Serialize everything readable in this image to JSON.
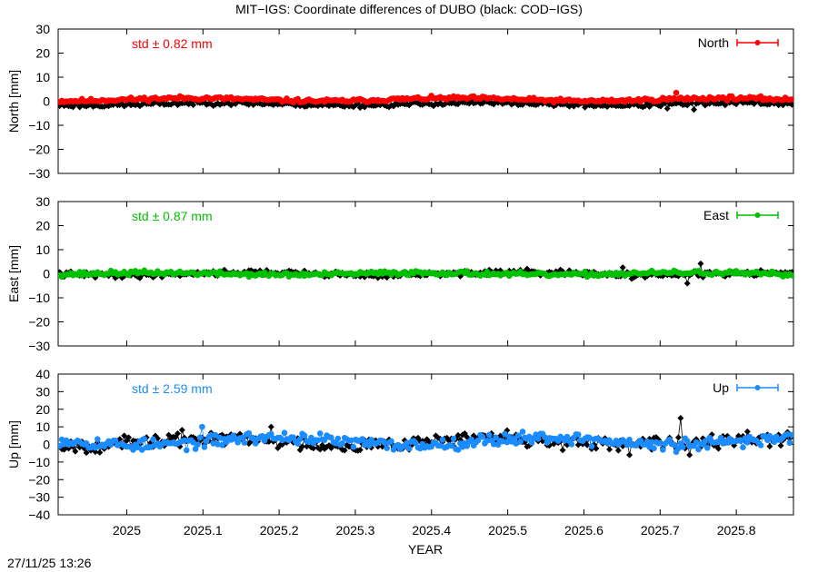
{
  "title": "MIT−IGS: Coordinate differences of DUBO (black: COD−IGS)",
  "timestamp": "27/11/25 13:26",
  "chart_data": {
    "type": "scatter",
    "xlabel": "YEAR",
    "xlim": [
      2024.91,
      2025.875
    ],
    "xticks": [
      "2025",
      "2025.1",
      "2025.2",
      "2025.3",
      "2025.4",
      "2025.5",
      "2025.6",
      "2025.7",
      "2025.8"
    ],
    "grid": false,
    "panels": [
      {
        "ylabel": "North [mm]",
        "ylim": [
          -30,
          30
        ],
        "yticks": [
          "30",
          "20",
          "10",
          "0",
          "−10",
          "−20",
          "−30"
        ],
        "std_label": "std ± 0.82 mm",
        "legend": "North",
        "legend_position": "top-right",
        "color": "#ff0000",
        "series": [
          {
            "name": "North",
            "color": "#ff0000",
            "base": 0.7,
            "amp": 0.6,
            "noise": 0.6,
            "seed": 11,
            "x": [
              2025.72
            ],
            "values": [
              3.5
            ]
          },
          {
            "color": "#000000",
            "base": -1.2,
            "amp": 0.5,
            "noise": 0.7,
            "seed": 23,
            "x": [
              2025.745,
              2025.71
            ],
            "values": [
              -3.5,
              -3.0
            ]
          }
        ]
      },
      {
        "ylabel": "East [mm]",
        "ylim": [
          -30,
          30
        ],
        "yticks": [
          "30",
          "20",
          "10",
          "0",
          "−10",
          "−20",
          "−30"
        ],
        "std_label": "std ± 0.87 mm",
        "legend": "East",
        "legend_position": "top-right",
        "color": "#00c000",
        "series": [
          {
            "name": "East",
            "color": "#00c000",
            "base": 0.0,
            "amp": 0.4,
            "noise": 0.7,
            "seed": 37,
            "x": [],
            "values": []
          },
          {
            "color": "#000000",
            "base": 0.0,
            "amp": 0.6,
            "noise": 0.9,
            "seed": 41,
            "x": [
              2025.752,
              2025.735,
              2025.652
            ],
            "values": [
              4.2,
              -4.0,
              2.6
            ]
          }
        ]
      },
      {
        "ylabel": "Up [mm]",
        "ylim": [
          -40,
          40
        ],
        "yticks": [
          "40",
          "30",
          "20",
          "10",
          "0",
          "−10",
          "−20",
          "−30",
          "−40"
        ],
        "std_label": "std ± 2.59 mm",
        "legend": "Up",
        "legend_position": "top-right",
        "color": "#1a8cff",
        "series": [
          {
            "name": "Up",
            "color": "#1a8cff",
            "base": 1.8,
            "amp": 2.2,
            "noise": 2.6,
            "seed": 53,
            "x": [
              2025.1
            ],
            "values": [
              10
            ]
          },
          {
            "color": "#000000",
            "base": 1.5,
            "amp": 2.0,
            "noise": 3.0,
            "seed": 67,
            "x": [
              2025.727,
              2025.19,
              2025.66,
              2025.5,
              2025.74
            ],
            "values": [
              15,
              10,
              -6,
              8,
              -6
            ]
          }
        ]
      }
    ]
  }
}
